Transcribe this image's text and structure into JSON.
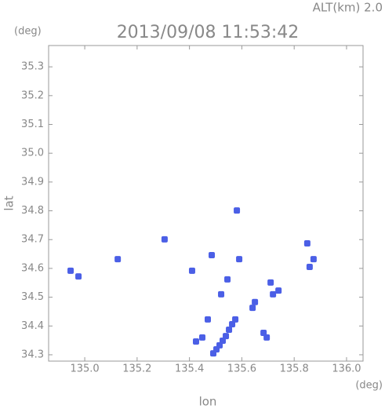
{
  "chart_data": {
    "type": "scatter",
    "title": "2013/09/08 11:53:42",
    "subtitle": "ALT(km) 2.0",
    "xlabel": "lon",
    "ylabel": "lat",
    "xunit": "(deg)",
    "yunit": "(deg)",
    "x": [
      135.491,
      135.503,
      135.515,
      135.527,
      135.539,
      135.551,
      135.563,
      135.575,
      135.65,
      135.641,
      135.719,
      135.74,
      135.695,
      135.683,
      135.859,
      135.874,
      135.85,
      134.946,
      134.976,
      135.126,
      135.41,
      135.47,
      135.425,
      135.521,
      135.545,
      135.59,
      135.485,
      135.305,
      135.581,
      135.71,
      135.449
    ],
    "y": [
      34.305,
      34.319,
      34.333,
      34.349,
      34.365,
      34.387,
      34.406,
      34.423,
      34.483,
      34.463,
      34.51,
      34.523,
      34.36,
      34.376,
      34.605,
      34.632,
      34.687,
      34.592,
      34.572,
      34.632,
      34.592,
      34.423,
      34.346,
      34.51,
      34.562,
      34.632,
      34.646,
      34.701,
      34.801,
      34.551,
      34.36
    ],
    "color": "#4b5fe6",
    "xlim": [
      134.862,
      136.063
    ],
    "ylim": [
      34.278,
      35.374
    ],
    "xticks": [
      {
        "value": 135,
        "label": "135.0"
      },
      135.2,
      135.4,
      135.6,
      135.8,
      {
        "value": 136,
        "label": "136.0"
      }
    ],
    "yticks": [
      34.3,
      34.4,
      34.5,
      34.6,
      34.7,
      34.8,
      34.9,
      {
        "value": 35,
        "label": "35.0"
      },
      35.1,
      35.2,
      35.3
    ],
    "grid": false
  }
}
